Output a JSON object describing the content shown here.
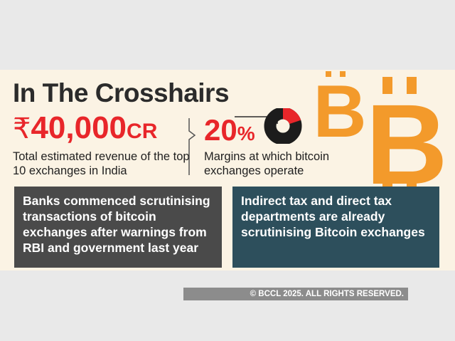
{
  "infographic": {
    "title": "In The Crosshairs",
    "revenue": {
      "symbol": "₹",
      "value": "40,000",
      "unit": "CR",
      "description": "Total estimated revenue of the top 10 exchanges in India"
    },
    "margin": {
      "value": "20",
      "unit": "%",
      "percent": 20,
      "description": "Margins at which bitcoin exchanges operate"
    },
    "boxes": [
      "Banks commenced scrutinising transactions of bitcoin exchanges after warnings from RBI and government last year",
      "Indirect tax and direct tax departments are already scrutinising Bitcoin exchanges"
    ],
    "icons": [
      "bitcoin-symbol-icon",
      "donut-chart-icon"
    ],
    "colors": {
      "accent": "#e8262a",
      "background": "#fbf3e4",
      "bitcoin": "#f39a2b",
      "box_left": "#4a4a4a",
      "box_right": "#2d4f5c"
    }
  },
  "footer": {
    "copyright": "© BCCL 2025. ALL RIGHTS RESERVED."
  }
}
